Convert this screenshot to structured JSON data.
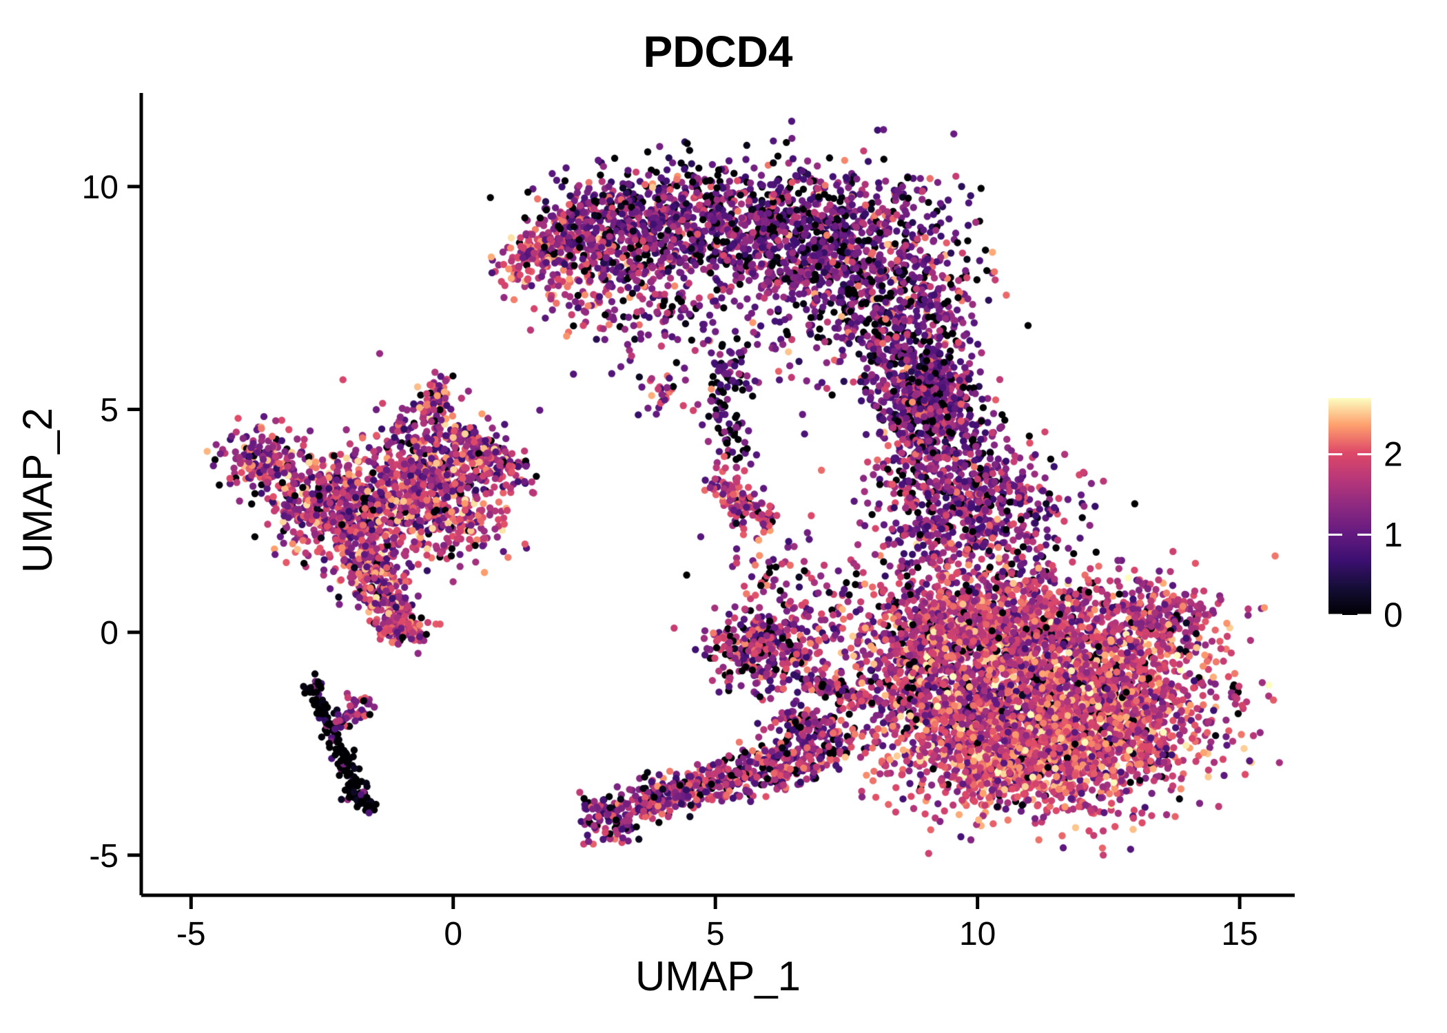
{
  "figure": {
    "title": "PDCD4",
    "x_axis": {
      "label": "UMAP_1"
    },
    "y_axis": {
      "label": "UMAP_2"
    }
  },
  "chart_data": {
    "type": "scatter",
    "title": "PDCD4",
    "xlabel": "UMAP_1",
    "ylabel": "UMAP_2",
    "xlim": [
      -5.95,
      16.05
    ],
    "ylim": [
      -5.9,
      12.1
    ],
    "x_ticks": [
      -5,
      0,
      5,
      10,
      15
    ],
    "y_ticks": [
      -5,
      0,
      5,
      10
    ],
    "grid": false,
    "legend_position": "right",
    "point_radius_px": 5.2,
    "seed": 20240613,
    "color_scale": {
      "name": "magma",
      "domain": [
        0,
        2.7
      ],
      "legend_ticks": [
        0,
        1,
        2
      ],
      "stops": [
        [
          0.0,
          "#000004"
        ],
        [
          0.125,
          "#140E36"
        ],
        [
          0.25,
          "#3B0F70"
        ],
        [
          0.375,
          "#641A80"
        ],
        [
          0.5,
          "#8C2981"
        ],
        [
          0.625,
          "#B73779"
        ],
        [
          0.75,
          "#DE4968"
        ],
        [
          0.875,
          "#FE9F6D"
        ],
        [
          1.0,
          "#FCFDBF"
        ]
      ]
    },
    "expression_mixes": {
      "arc": [
        [
          0,
          0.2
        ],
        [
          0.7,
          0.16
        ],
        [
          1.0,
          0.26
        ],
        [
          1.3,
          0.16
        ],
        [
          1.6,
          0.12
        ],
        [
          2.0,
          0.08
        ],
        [
          2.3,
          0.02
        ]
      ],
      "arctip": [
        [
          0,
          0.05
        ],
        [
          1.0,
          0.12
        ],
        [
          1.5,
          0.2
        ],
        [
          1.8,
          0.28
        ],
        [
          2.1,
          0.25
        ],
        [
          2.4,
          0.1
        ]
      ],
      "left": [
        [
          0,
          0.07
        ],
        [
          0.8,
          0.14
        ],
        [
          1.2,
          0.2
        ],
        [
          1.6,
          0.25
        ],
        [
          2.0,
          0.24
        ],
        [
          2.4,
          0.1
        ]
      ],
      "black": [
        [
          0,
          0.87
        ],
        [
          0.8,
          0.08
        ],
        [
          1.4,
          0.05
        ]
      ],
      "pinkbranch": [
        [
          0,
          0.12
        ],
        [
          1.0,
          0.25
        ],
        [
          1.5,
          0.33
        ],
        [
          1.9,
          0.3
        ]
      ],
      "midwarm": [
        [
          0,
          0.06
        ],
        [
          1.0,
          0.14
        ],
        [
          1.5,
          0.25
        ],
        [
          1.9,
          0.35
        ],
        [
          2.2,
          0.2
        ]
      ],
      "darksmall": [
        [
          0,
          0.3
        ],
        [
          0.9,
          0.45
        ],
        [
          1.4,
          0.25
        ]
      ],
      "center": [
        [
          0,
          0.16
        ],
        [
          0.8,
          0.2
        ],
        [
          1.3,
          0.24
        ],
        [
          1.7,
          0.22
        ],
        [
          2.1,
          0.18
        ]
      ],
      "rightwarm": [
        [
          0,
          0.07
        ],
        [
          0.9,
          0.11
        ],
        [
          1.4,
          0.18
        ],
        [
          1.7,
          0.26
        ],
        [
          2.0,
          0.24
        ],
        [
          2.3,
          0.1
        ],
        [
          2.6,
          0.04
        ]
      ],
      "righthot": [
        [
          0,
          0.05
        ],
        [
          1.0,
          0.09
        ],
        [
          1.5,
          0.2
        ],
        [
          1.9,
          0.3
        ],
        [
          2.2,
          0.24
        ],
        [
          2.5,
          0.12
        ]
      ],
      "band": [
        [
          0,
          0.13
        ],
        [
          0.8,
          0.22
        ],
        [
          1.2,
          0.25
        ],
        [
          1.6,
          0.22
        ],
        [
          2.0,
          0.18
        ]
      ]
    },
    "clusters": [
      {
        "name": "arc-left-tip",
        "type": "line",
        "x1": 1.1,
        "y1": 8.0,
        "x2": 2.6,
        "y2": 9.35,
        "w": 0.25,
        "n": 170,
        "mix": "arctip"
      },
      {
        "name": "arc-left-warm",
        "type": "blob",
        "cx": 2.5,
        "cy": 8.15,
        "sx": 0.7,
        "sy": 0.6,
        "n": 140,
        "mix": "arctip"
      },
      {
        "name": "arc-upper-left",
        "type": "blob",
        "cx": 3.3,
        "cy": 9.2,
        "sx": 0.85,
        "sy": 0.55,
        "n": 480,
        "mix": "arc"
      },
      {
        "name": "arc-top-core",
        "type": "blob",
        "cx": 5.9,
        "cy": 9.0,
        "sx": 1.5,
        "sy": 0.75,
        "n": 950,
        "mix": "arc"
      },
      {
        "name": "arc-right-core",
        "type": "blob",
        "cx": 7.9,
        "cy": 8.0,
        "sx": 1.0,
        "sy": 1.1,
        "n": 650,
        "mix": "arc"
      },
      {
        "name": "arc-right-lower",
        "type": "blob",
        "cx": 8.8,
        "cy": 6.3,
        "sx": 0.6,
        "sy": 1.0,
        "n": 380,
        "mix": "arc"
      },
      {
        "name": "arc-interior",
        "type": "blob",
        "cx": 4.1,
        "cy": 7.5,
        "sx": 1.2,
        "sy": 0.8,
        "n": 170,
        "mix": "arc"
      },
      {
        "name": "neck",
        "type": "blob",
        "cx": 9.0,
        "cy": 5.1,
        "sx": 0.45,
        "sy": 0.65,
        "n": 200,
        "mix": "arc"
      },
      {
        "name": "left-arm",
        "type": "blob",
        "cx": -3.6,
        "cy": 3.8,
        "sx": 0.45,
        "sy": 0.4,
        "n": 160,
        "mix": "left"
      },
      {
        "name": "left-arm2",
        "type": "blob",
        "cx": -2.6,
        "cy": 2.9,
        "sx": 0.5,
        "sy": 0.55,
        "n": 240,
        "mix": "left"
      },
      {
        "name": "left-main",
        "type": "blob",
        "cx": -1.5,
        "cy": 2.7,
        "sx": 0.68,
        "sy": 0.75,
        "n": 480,
        "mix": "left"
      },
      {
        "name": "left-upper-lobe",
        "type": "blob",
        "cx": -0.4,
        "cy": 3.6,
        "sx": 0.6,
        "sy": 0.68,
        "n": 430,
        "mix": "left"
      },
      {
        "name": "left-top-spike",
        "type": "line",
        "x1": -0.5,
        "y1": 4.7,
        "x2": -0.15,
        "y2": 5.75,
        "w": 0.18,
        "n": 75,
        "mix": "left"
      },
      {
        "name": "left-right-branch",
        "type": "line",
        "x1": 0.15,
        "y1": 4.3,
        "x2": 1.2,
        "y2": 3.5,
        "w": 0.22,
        "n": 150,
        "mix": "left"
      },
      {
        "name": "left-mid-scatter",
        "type": "blob",
        "cx": 0.3,
        "cy": 2.6,
        "sx": 0.5,
        "sy": 0.5,
        "n": 130,
        "mix": "left"
      },
      {
        "name": "left-down-branch",
        "type": "line",
        "x1": -1.8,
        "y1": 1.8,
        "x2": -1.0,
        "y2": 0.2,
        "w": 0.22,
        "n": 270,
        "mix": "left"
      },
      {
        "name": "left-down-tip",
        "type": "blob",
        "cx": -1.0,
        "cy": 0.05,
        "sx": 0.22,
        "sy": 0.18,
        "n": 95,
        "mix": "midwarm"
      },
      {
        "name": "black-streak",
        "type": "line",
        "x1": -2.7,
        "y1": -1.15,
        "x2": -1.9,
        "y2": -3.45,
        "w": 0.1,
        "n": 125,
        "mix": "black"
      },
      {
        "name": "black-streak-tip",
        "type": "blob",
        "cx": -1.78,
        "cy": -3.7,
        "sx": 0.13,
        "sy": 0.16,
        "n": 40,
        "mix": "black"
      },
      {
        "name": "streak-pink-branch",
        "type": "line",
        "x1": -2.25,
        "y1": -2.15,
        "x2": -1.6,
        "y2": -1.6,
        "w": 0.12,
        "n": 48,
        "mix": "pinkbranch"
      },
      {
        "name": "small-dark-upper",
        "type": "blob",
        "cx": 5.35,
        "cy": 5.85,
        "sx": 0.25,
        "sy": 0.35,
        "n": 55,
        "mix": "darksmall"
      },
      {
        "name": "small-dark-trail",
        "type": "line",
        "x1": 5.05,
        "y1": 5.2,
        "x2": 5.45,
        "y2": 3.8,
        "w": 0.15,
        "n": 50,
        "mix": "darksmall"
      },
      {
        "name": "small-left-dots",
        "type": "blob",
        "cx": 4.1,
        "cy": 5.3,
        "sx": 0.35,
        "sy": 0.25,
        "n": 30,
        "mix": "left"
      },
      {
        "name": "mid-warm-streak",
        "type": "line",
        "x1": 5.0,
        "y1": 3.5,
        "x2": 5.95,
        "y2": 2.4,
        "w": 0.18,
        "n": 130,
        "mix": "midwarm"
      },
      {
        "name": "center-blob",
        "type": "blob",
        "cx": 5.9,
        "cy": -0.35,
        "sx": 0.5,
        "sy": 0.42,
        "n": 300,
        "mix": "center"
      },
      {
        "name": "center-upper-field",
        "type": "blob",
        "cx": 6.6,
        "cy": 0.9,
        "sx": 0.8,
        "sy": 0.8,
        "n": 120,
        "mix": "center"
      },
      {
        "name": "center-chain-1",
        "type": "line",
        "x1": 6.7,
        "y1": -1.0,
        "x2": 7.85,
        "y2": -1.55,
        "w": 0.15,
        "n": 90,
        "mix": "center"
      },
      {
        "name": "center-chain-2",
        "type": "line",
        "x1": 6.2,
        "y1": -1.8,
        "x2": 7.4,
        "y2": -2.5,
        "w": 0.22,
        "n": 120,
        "mix": "center"
      },
      {
        "name": "tail-tip",
        "type": "blob",
        "cx": 2.95,
        "cy": -4.15,
        "sx": 0.28,
        "sy": 0.3,
        "n": 100,
        "mix": "center"
      },
      {
        "name": "tail-chain-1",
        "type": "line",
        "x1": 3.4,
        "y1": -3.9,
        "x2": 5.2,
        "y2": -3.3,
        "w": 0.22,
        "n": 240,
        "mix": "center"
      },
      {
        "name": "tail-chain-2",
        "type": "line",
        "x1": 5.2,
        "y1": -3.3,
        "x2": 7.0,
        "y2": -2.7,
        "w": 0.28,
        "n": 260,
        "mix": "center"
      },
      {
        "name": "band-upper",
        "type": "blob",
        "cx": 9.0,
        "cy": 5.0,
        "sx": 0.5,
        "sy": 0.6,
        "n": 220,
        "mix": "arc"
      },
      {
        "name": "band-core",
        "type": "blob",
        "cx": 9.6,
        "cy": 3.0,
        "sx": 0.75,
        "sy": 0.9,
        "n": 600,
        "mix": "band"
      },
      {
        "name": "band-right-sparse",
        "type": "blob",
        "cx": 11.0,
        "cy": 2.6,
        "sx": 0.8,
        "sy": 0.7,
        "n": 130,
        "mix": "band"
      },
      {
        "name": "mass-left-edge",
        "type": "blob",
        "cx": 8.9,
        "cy": -0.9,
        "sx": 0.55,
        "sy": 0.85,
        "n": 380,
        "mix": "center"
      },
      {
        "name": "mass-upper",
        "type": "blob",
        "cx": 10.1,
        "cy": 0.2,
        "sx": 1.15,
        "sy": 0.7,
        "n": 850,
        "mix": "rightwarm"
      },
      {
        "name": "mass-core",
        "type": "blob",
        "cx": 11.3,
        "cy": -1.6,
        "sx": 1.5,
        "sy": 1.15,
        "n": 2500,
        "mix": "rightwarm"
      },
      {
        "name": "mass-right",
        "type": "blob",
        "cx": 12.7,
        "cy": -1.8,
        "sx": 0.7,
        "sy": 0.75,
        "n": 400,
        "mix": "righthot"
      },
      {
        "name": "mass-protrusion",
        "type": "blob",
        "cx": 13.4,
        "cy": 0.2,
        "sx": 0.7,
        "sy": 0.5,
        "n": 260,
        "mix": "rightwarm"
      },
      {
        "name": "mass-bottom-hot",
        "type": "blob",
        "cx": 10.8,
        "cy": -2.8,
        "sx": 1.05,
        "sy": 0.55,
        "n": 700,
        "mix": "righthot"
      }
    ]
  }
}
